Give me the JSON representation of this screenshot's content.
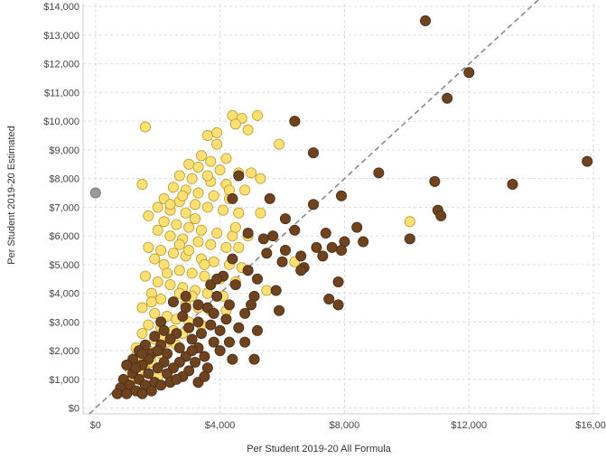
{
  "chart_data": {
    "type": "scatter",
    "title": "",
    "xlabel": "Per Student 2019-20 All Formula",
    "ylabel": "Per Student 2019-20 Estimated",
    "xlim": [
      -400,
      16200
    ],
    "ylim": [
      -200,
      14100
    ],
    "x_ticks": [
      0,
      4000,
      8000,
      12000,
      16000
    ],
    "x_tick_labels": [
      "$0",
      "$4,000",
      "$8,000",
      "$12,000",
      "$16,000"
    ],
    "y_ticks": [
      0,
      1000,
      2000,
      3000,
      4000,
      5000,
      6000,
      7000,
      8000,
      9000,
      10000,
      11000,
      12000,
      13000,
      14000
    ],
    "y_tick_labels": [
      "$0",
      "$1,000",
      "$2,000",
      "$3,000",
      "$4,000",
      "$5,000",
      "$6,000",
      "$7,000",
      "$8,000",
      "$9,000",
      "$10,000",
      "$11,000",
      "$12,000",
      "$13,000",
      "$14,000"
    ],
    "grid": true,
    "reference_line": {
      "style": "dashed",
      "color": "#8a8a8a",
      "from": [
        -200,
        -200
      ],
      "to": [
        16200,
        16200
      ]
    },
    "series": [
      {
        "color": "#ffe074",
        "stroke": "#b89a2e",
        "points": [
          [
            1600,
            9800
          ],
          [
            4400,
            10200
          ],
          [
            4700,
            10100
          ],
          [
            5200,
            10200
          ],
          [
            4500,
            9900
          ],
          [
            4900,
            9700
          ],
          [
            3600,
            9500
          ],
          [
            3900,
            9200
          ],
          [
            5900,
            9200
          ],
          [
            3400,
            8800
          ],
          [
            3700,
            8600
          ],
          [
            3000,
            8500
          ],
          [
            3300,
            8400
          ],
          [
            4000,
            8300
          ],
          [
            4600,
            8200
          ],
          [
            5000,
            8200
          ],
          [
            5300,
            8000
          ],
          [
            2700,
            8100
          ],
          [
            3100,
            8000
          ],
          [
            3700,
            7900
          ],
          [
            4200,
            7800
          ],
          [
            4800,
            7600
          ],
          [
            1500,
            7800
          ],
          [
            2500,
            7700
          ],
          [
            2900,
            7600
          ],
          [
            3300,
            7500
          ],
          [
            3800,
            7400
          ],
          [
            4300,
            7300
          ],
          [
            2200,
            7300
          ],
          [
            2700,
            7200
          ],
          [
            3200,
            7100
          ],
          [
            3600,
            7000
          ],
          [
            4100,
            6900
          ],
          [
            4600,
            6800
          ],
          [
            5300,
            6800
          ],
          [
            2000,
            7000
          ],
          [
            2400,
            6900
          ],
          [
            2900,
            6800
          ],
          [
            1700,
            6700
          ],
          [
            2200,
            6500
          ],
          [
            2600,
            6400
          ],
          [
            3000,
            6300
          ],
          [
            3400,
            6200
          ],
          [
            3900,
            6100
          ],
          [
            4400,
            6000
          ],
          [
            4900,
            6000
          ],
          [
            2000,
            6200
          ],
          [
            2400,
            6000
          ],
          [
            2800,
            5900
          ],
          [
            3300,
            5800
          ],
          [
            3700,
            5700
          ],
          [
            4200,
            5600
          ],
          [
            4600,
            5600
          ],
          [
            1700,
            5600
          ],
          [
            2100,
            5500
          ],
          [
            2500,
            5400
          ],
          [
            2900,
            5300
          ],
          [
            3400,
            5200
          ],
          [
            3800,
            5100
          ],
          [
            4300,
            5000
          ],
          [
            4700,
            4900
          ],
          [
            6400,
            5100
          ],
          [
            1900,
            5200
          ],
          [
            2200,
            5000
          ],
          [
            2700,
            4800
          ],
          [
            3100,
            4700
          ],
          [
            3500,
            4600
          ],
          [
            4000,
            4500
          ],
          [
            4500,
            4400
          ],
          [
            1600,
            4600
          ],
          [
            2000,
            4400
          ],
          [
            2400,
            4300
          ],
          [
            2800,
            4200
          ],
          [
            3200,
            4100
          ],
          [
            3600,
            4000
          ],
          [
            4100,
            3900
          ],
          [
            5500,
            4100
          ],
          [
            1800,
            4000
          ],
          [
            2100,
            3800
          ],
          [
            2500,
            3700
          ],
          [
            2900,
            3600
          ],
          [
            3300,
            3500
          ],
          [
            3700,
            3400
          ],
          [
            4200,
            3400
          ],
          [
            1500,
            3500
          ],
          [
            1900,
            3300
          ],
          [
            2300,
            3200
          ],
          [
            2600,
            3100
          ],
          [
            3000,
            3000
          ],
          [
            3400,
            2900
          ],
          [
            1700,
            2900
          ],
          [
            2100,
            2800
          ],
          [
            2500,
            2700
          ],
          [
            2800,
            2600
          ],
          [
            1500,
            2600
          ],
          [
            1900,
            2400
          ],
          [
            2300,
            2300
          ],
          [
            2600,
            2200
          ],
          [
            1300,
            2100
          ],
          [
            1700,
            2000
          ],
          [
            2100,
            1900
          ],
          [
            1400,
            1700
          ],
          [
            1800,
            1600
          ],
          [
            1600,
            1300
          ],
          [
            1100,
            1400
          ],
          [
            2000,
            1100
          ],
          [
            10100,
            6500
          ],
          [
            1300,
            1800
          ],
          [
            1200,
            1000
          ],
          [
            2200,
            2500
          ],
          [
            3100,
            3900
          ],
          [
            3500,
            5000
          ],
          [
            2700,
            5700
          ],
          [
            3200,
            6600
          ],
          [
            2400,
            7100
          ],
          [
            2800,
            7400
          ],
          [
            3600,
            8100
          ],
          [
            4200,
            8700
          ],
          [
            3900,
            9600
          ],
          [
            4300,
            7600
          ],
          [
            4500,
            6300
          ],
          [
            3000,
            5500
          ],
          [
            2300,
            4700
          ],
          [
            1800,
            3700
          ],
          [
            2700,
            4000
          ]
        ]
      },
      {
        "color": "#6e4320",
        "stroke": "#4a2c14",
        "points": [
          [
            10600,
            13500
          ],
          [
            12000,
            11700
          ],
          [
            11300,
            10800
          ],
          [
            6400,
            10000
          ],
          [
            7000,
            8900
          ],
          [
            15800,
            8600
          ],
          [
            9100,
            8200
          ],
          [
            4600,
            8100
          ],
          [
            10900,
            7900
          ],
          [
            13400,
            7800
          ],
          [
            7900,
            7400
          ],
          [
            4400,
            7300
          ],
          [
            5600,
            7300
          ],
          [
            7000,
            7100
          ],
          [
            11000,
            6900
          ],
          [
            11100,
            6700
          ],
          [
            6100,
            6600
          ],
          [
            8400,
            6300
          ],
          [
            4900,
            6100
          ],
          [
            6400,
            6200
          ],
          [
            7400,
            6100
          ],
          [
            8000,
            5800
          ],
          [
            8600,
            5800
          ],
          [
            10100,
            5900
          ],
          [
            7100,
            5600
          ],
          [
            7600,
            5600
          ],
          [
            7900,
            5500
          ],
          [
            6100,
            5500
          ],
          [
            5500,
            5400
          ],
          [
            6600,
            5300
          ],
          [
            7300,
            5300
          ],
          [
            4400,
            5200
          ],
          [
            6000,
            5100
          ],
          [
            6700,
            4900
          ],
          [
            4900,
            4800
          ],
          [
            6600,
            4800
          ],
          [
            4100,
            4600
          ],
          [
            5200,
            4500
          ],
          [
            7800,
            4400
          ],
          [
            3700,
            4300
          ],
          [
            4500,
            4300
          ],
          [
            5800,
            4100
          ],
          [
            7500,
            3800
          ],
          [
            3900,
            3900
          ],
          [
            5100,
            3900
          ],
          [
            7800,
            3600
          ],
          [
            3300,
            3600
          ],
          [
            4300,
            3600
          ],
          [
            5000,
            3600
          ],
          [
            2500,
            3700
          ],
          [
            2900,
            3500
          ],
          [
            3600,
            3500
          ],
          [
            5900,
            3400
          ],
          [
            4800,
            3300
          ],
          [
            3800,
            3300
          ],
          [
            4200,
            3100
          ],
          [
            2800,
            3200
          ],
          [
            3300,
            3000
          ],
          [
            2100,
            3000
          ],
          [
            3000,
            2800
          ],
          [
            4600,
            2800
          ],
          [
            4000,
            2700
          ],
          [
            5200,
            2700
          ],
          [
            2200,
            2700
          ],
          [
            2600,
            2600
          ],
          [
            3400,
            2600
          ],
          [
            1900,
            2500
          ],
          [
            2400,
            2400
          ],
          [
            3100,
            2400
          ],
          [
            3800,
            2300
          ],
          [
            4800,
            2300
          ],
          [
            1600,
            2200
          ],
          [
            2100,
            2200
          ],
          [
            2700,
            2100
          ],
          [
            3300,
            2100
          ],
          [
            4000,
            2000
          ],
          [
            1400,
            2000
          ],
          [
            1800,
            1900
          ],
          [
            2300,
            1900
          ],
          [
            2900,
            1800
          ],
          [
            3500,
            1800
          ],
          [
            1200,
            1700
          ],
          [
            1700,
            1700
          ],
          [
            2200,
            1600
          ],
          [
            2700,
            1600
          ],
          [
            3200,
            1600
          ],
          [
            4400,
            1700
          ],
          [
            5100,
            1700
          ],
          [
            1000,
            1500
          ],
          [
            1500,
            1500
          ],
          [
            2000,
            1400
          ],
          [
            2500,
            1400
          ],
          [
            3000,
            1300
          ],
          [
            3600,
            1400
          ],
          [
            1200,
            1200
          ],
          [
            1700,
            1200
          ],
          [
            2300,
            1200
          ],
          [
            2800,
            1100
          ],
          [
            900,
            1000
          ],
          [
            1400,
            1000
          ],
          [
            1900,
            900
          ],
          [
            2400,
            900
          ],
          [
            3300,
            900
          ],
          [
            1100,
            800
          ],
          [
            1600,
            800
          ],
          [
            2100,
            800
          ],
          [
            800,
            700
          ],
          [
            1300,
            600
          ],
          [
            1800,
            600
          ],
          [
            700,
            500
          ],
          [
            1000,
            500
          ],
          [
            1500,
            500
          ],
          [
            2600,
            1000
          ],
          [
            3500,
            1100
          ],
          [
            2000,
            2000
          ],
          [
            1500,
            1900
          ],
          [
            3700,
            2900
          ],
          [
            4300,
            2300
          ],
          [
            2900,
            3900
          ],
          [
            3100,
            2000
          ],
          [
            1300,
            1400
          ],
          [
            3900,
            4500
          ],
          [
            5400,
            5900
          ],
          [
            5700,
            6000
          ]
        ]
      },
      {
        "color": "#9a9a9a",
        "stroke": "#6f6f6f",
        "points": [
          [
            0,
            7500
          ]
        ]
      }
    ]
  }
}
